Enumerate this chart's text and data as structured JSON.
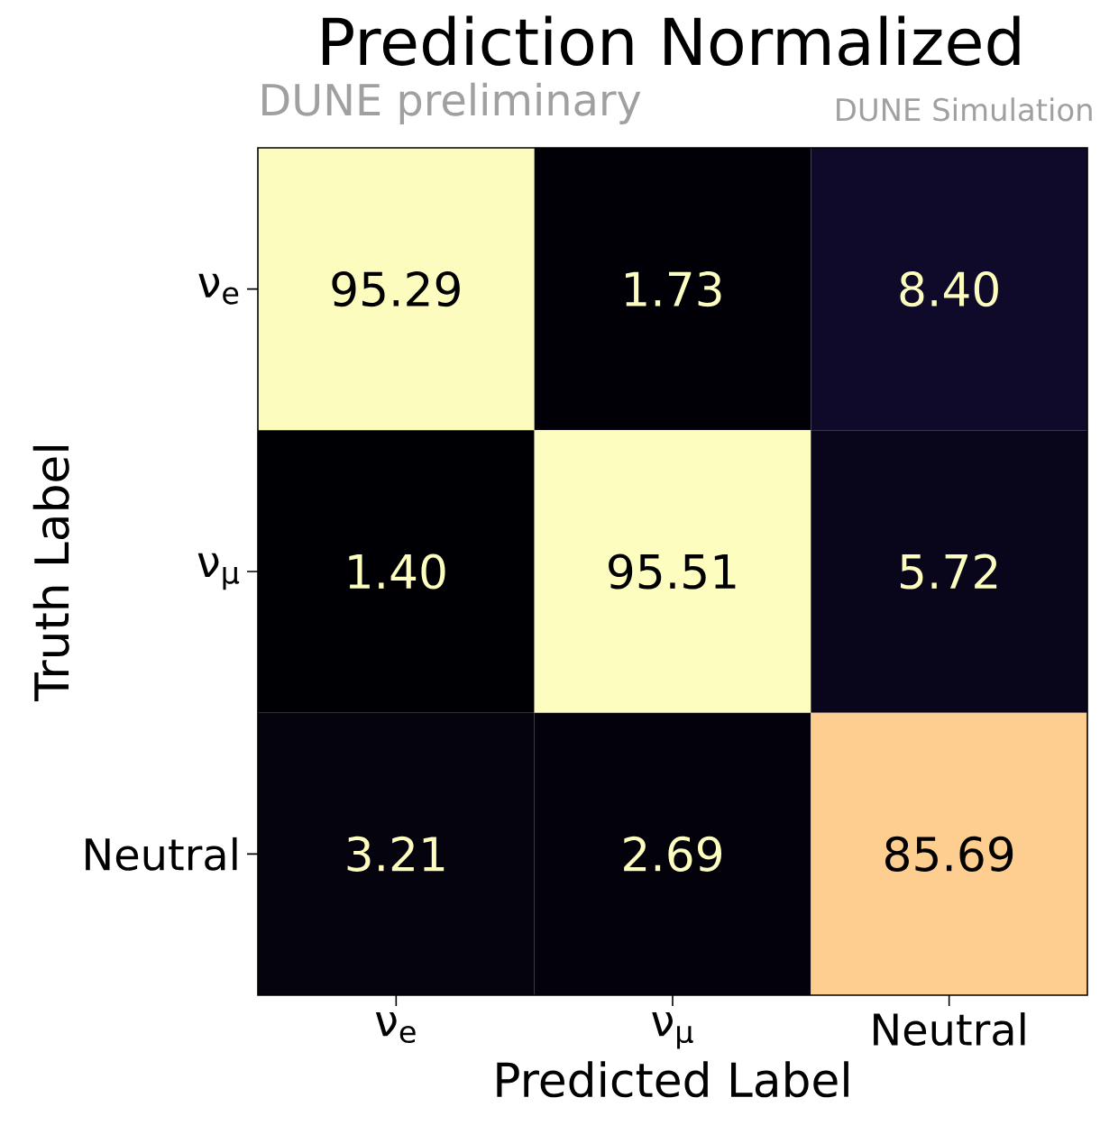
{
  "chart_data": {
    "type": "heatmap",
    "title": "Prediction Normalized",
    "xlabel": "Predicted Label",
    "ylabel": "Truth Label",
    "annotations": [
      "DUNE preliminary",
      "DUNE Simulation"
    ],
    "categories": [
      "ν$_{e}$",
      "ν$_{μ}$",
      "Neutral"
    ],
    "y_categories": [
      "ν$_{e}$",
      "ν$_{μ}$",
      "Neutral"
    ],
    "cells": [
      [
        95.29,
        1.73,
        8.4
      ],
      [
        1.4,
        95.51,
        5.72
      ],
      [
        3.21,
        2.69,
        85.69
      ]
    ],
    "cell_labels": [
      [
        "95.29",
        "1.73",
        "8.40"
      ],
      [
        "1.40",
        "95.51",
        "5.72"
      ],
      [
        "3.21",
        "2.69",
        "85.69"
      ]
    ],
    "data_labels": true
  }
}
